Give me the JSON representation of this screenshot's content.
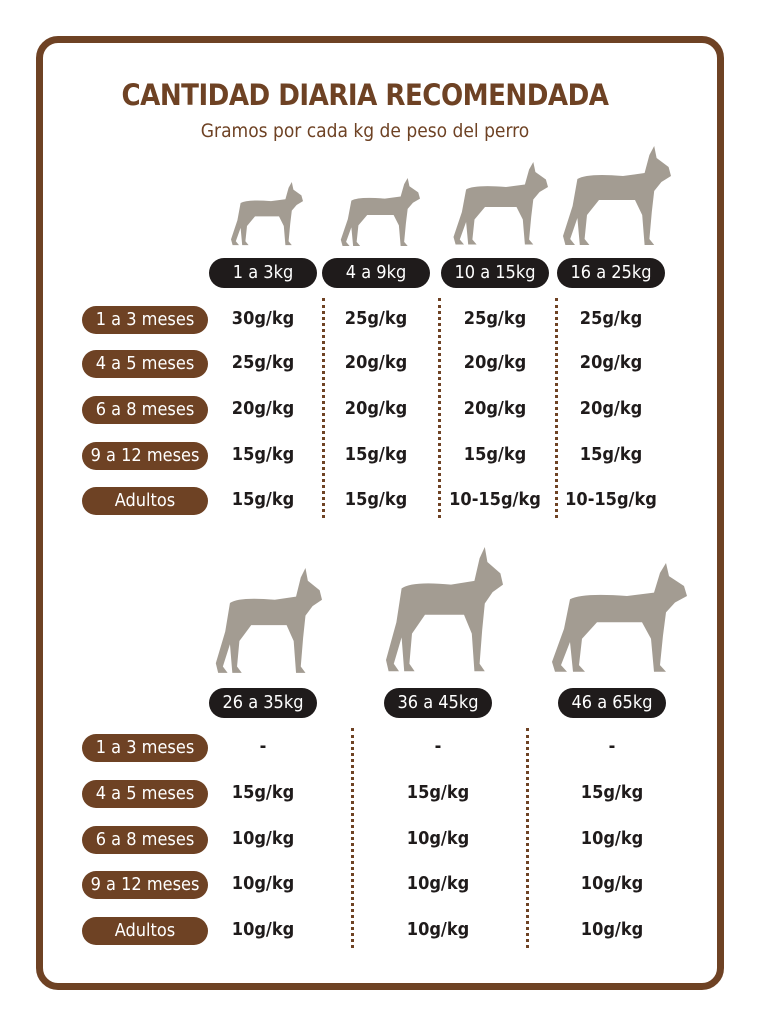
{
  "title": "CANTIDAD DIARIA RECOMENDADA",
  "subtitle": "Gramos por cada kg de peso del perro",
  "colors": {
    "brown": "#6e4224",
    "pill_dark": "#1f1b1b",
    "silhouette": "#a39c92"
  },
  "tables": [
    {
      "columns": [
        "1 a 3kg",
        "4 a 9kg",
        "10 a 15kg",
        "16 a 25kg"
      ],
      "dog_icons": [
        "yorkshire-terrier-icon",
        "scottish-terrier-icon",
        "schnauzer-icon",
        "beagle-icon"
      ],
      "rows": [
        {
          "label": "1 a 3 meses",
          "values": [
            "30g/kg",
            "25g/kg",
            "25g/kg",
            "25g/kg"
          ]
        },
        {
          "label": "4 a 5 meses",
          "values": [
            "25g/kg",
            "20g/kg",
            "20g/kg",
            "20g/kg"
          ]
        },
        {
          "label": "6 a 8 meses",
          "values": [
            "20g/kg",
            "20g/kg",
            "20g/kg",
            "20g/kg"
          ]
        },
        {
          "label": "9 a 12 meses",
          "values": [
            "15g/kg",
            "15g/kg",
            "15g/kg",
            "15g/kg"
          ]
        },
        {
          "label": "Adultos",
          "values": [
            "15g/kg",
            "15g/kg",
            "10-15g/kg",
            "10-15g/kg"
          ]
        }
      ]
    },
    {
      "columns": [
        "26 a 35kg",
        "36 a 45kg",
        "46 a 65kg"
      ],
      "dog_icons": [
        "boxer-icon",
        "great-dane-icon",
        "saint-bernard-icon"
      ],
      "rows": [
        {
          "label": "1 a 3 meses",
          "values": [
            "-",
            "-",
            "-"
          ]
        },
        {
          "label": "4 a 5 meses",
          "values": [
            "15g/kg",
            "15g/kg",
            "15g/kg"
          ]
        },
        {
          "label": "6 a 8 meses",
          "values": [
            "10g/kg",
            "10g/kg",
            "10g/kg"
          ]
        },
        {
          "label": "9 a 12 meses",
          "values": [
            "10g/kg",
            "10g/kg",
            "10g/kg"
          ]
        },
        {
          "label": "Adultos",
          "values": [
            "10g/kg",
            "10g/kg",
            "10g/kg"
          ]
        }
      ]
    }
  ]
}
